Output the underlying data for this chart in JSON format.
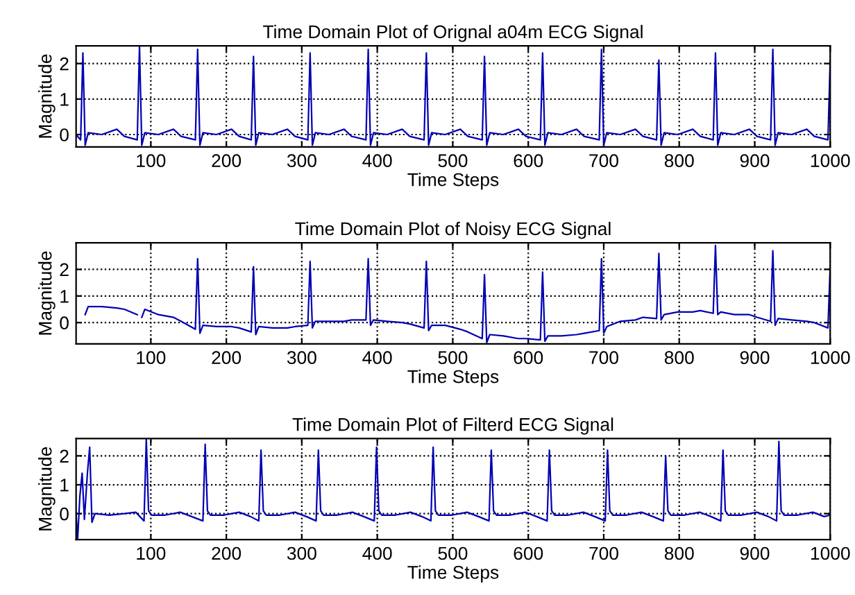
{
  "chart_data": [
    {
      "type": "line",
      "title": "Time Domain Plot of Orignal a04m ECG Signal",
      "xlabel": "Time Steps",
      "ylabel": "Magnitude",
      "xlim": [
        1,
        1000
      ],
      "ylim": [
        -0.35,
        2.5
      ],
      "xticks": [
        100,
        200,
        300,
        400,
        500,
        600,
        700,
        800,
        900,
        1000
      ],
      "yticks": [
        0,
        1,
        2
      ],
      "grid": true,
      "line_style": "solid",
      "series": [
        {
          "color": "#0000b4",
          "x": [
            1,
            7,
            10,
            13,
            17,
            35,
            55,
            65,
            82,
            85,
            88,
            92,
            110,
            130,
            140,
            159,
            162,
            165,
            169,
            187,
            207,
            217,
            233,
            236,
            239,
            243,
            261,
            281,
            291,
            308,
            311,
            314,
            318,
            336,
            356,
            366,
            385,
            388,
            391,
            395,
            413,
            433,
            443,
            462,
            465,
            468,
            472,
            490,
            510,
            520,
            539,
            542,
            545,
            549,
            567,
            587,
            597,
            616,
            619,
            622,
            626,
            644,
            664,
            674,
            694,
            697,
            700,
            704,
            722,
            742,
            752,
            770,
            773,
            776,
            780,
            798,
            818,
            828,
            845,
            848,
            851,
            855,
            873,
            893,
            903,
            921,
            924,
            927,
            931,
            949,
            969,
            979,
            997,
            1000
          ],
          "values": [
            0,
            -0.15,
            2.3,
            -0.3,
            0.05,
            0,
            0.15,
            -0.05,
            -0.15,
            2.5,
            -0.3,
            0.05,
            0,
            0.15,
            -0.05,
            -0.15,
            2.4,
            -0.3,
            0.05,
            0,
            0.15,
            -0.05,
            -0.15,
            2.2,
            -0.3,
            0.05,
            0,
            0.15,
            -0.05,
            -0.15,
            2.3,
            -0.3,
            0.05,
            0,
            0.15,
            -0.05,
            -0.15,
            2.4,
            -0.3,
            0.05,
            0,
            0.15,
            -0.05,
            -0.15,
            2.3,
            -0.3,
            0.05,
            0,
            0.15,
            -0.05,
            -0.15,
            2.2,
            -0.3,
            0.05,
            0,
            0.15,
            -0.05,
            -0.15,
            2.3,
            -0.3,
            0.05,
            0,
            0.15,
            -0.05,
            -0.15,
            2.4,
            -0.3,
            0.05,
            0,
            0.15,
            -0.05,
            -0.15,
            2.1,
            -0.3,
            0.05,
            0,
            0.15,
            -0.05,
            -0.15,
            2.3,
            -0.3,
            0.05,
            0,
            0.15,
            -0.05,
            -0.15,
            2.4,
            -0.3,
            0.05,
            0,
            0.15,
            -0.05,
            -0.15,
            2.1
          ]
        }
      ]
    },
    {
      "type": "line",
      "title": "Time Domain Plot of Noisy ECG Signal",
      "xlabel": "Time Steps",
      "ylabel": "Magnitude",
      "xlim": [
        1,
        1000
      ],
      "ylim": [
        -0.8,
        3
      ],
      "xticks": [
        100,
        200,
        300,
        400,
        500,
        600,
        700,
        800,
        900,
        1000
      ],
      "yticks": [
        0,
        1,
        2
      ],
      "grid": true,
      "line_style": "solid",
      "series": [
        {
          "color": "#0000b4",
          "x": [
            13,
            17,
            35,
            55,
            65,
            82,
            85,
            88,
            92,
            110,
            130,
            140,
            159,
            162,
            165,
            169,
            187,
            207,
            217,
            233,
            236,
            239,
            243,
            261,
            281,
            291,
            308,
            311,
            314,
            318,
            336,
            356,
            366,
            385,
            388,
            391,
            395,
            413,
            433,
            443,
            462,
            465,
            468,
            472,
            490,
            510,
            520,
            539,
            542,
            545,
            549,
            567,
            587,
            597,
            616,
            619,
            622,
            626,
            644,
            664,
            674,
            694,
            697,
            700,
            704,
            722,
            742,
            752,
            770,
            773,
            776,
            780,
            798,
            818,
            828,
            845,
            848,
            851,
            855,
            873,
            893,
            903,
            921,
            924,
            927,
            931,
            949,
            969,
            979,
            997,
            1000
          ],
          "values": [
            0.3,
            0.6,
            0.6,
            0.55,
            0.5,
            0.3,
            null,
            0.2,
            0.5,
            0.3,
            0.2,
            0.05,
            -0.25,
            2.4,
            -0.4,
            -0.1,
            -0.15,
            -0.15,
            -0.2,
            -0.35,
            2.1,
            -0.45,
            -0.15,
            -0.2,
            -0.2,
            -0.15,
            -0.1,
            2.3,
            -0.2,
            0.05,
            0.05,
            0.05,
            0.1,
            0.1,
            2.4,
            -0.1,
            0.1,
            0.05,
            0,
            -0.05,
            -0.2,
            2.3,
            -0.3,
            -0.1,
            -0.1,
            -0.25,
            -0.35,
            -0.6,
            1.8,
            -0.75,
            -0.45,
            -0.5,
            -0.6,
            -0.6,
            -0.65,
            1.9,
            -0.7,
            -0.5,
            -0.5,
            -0.45,
            -0.4,
            -0.3,
            2.4,
            -0.4,
            -0.15,
            0.05,
            0.1,
            0.2,
            0.15,
            2.6,
            0.1,
            0.3,
            0.4,
            0.4,
            0.45,
            0.35,
            2.9,
            0.3,
            0.4,
            0.3,
            0.3,
            0.2,
            0.05,
            2.7,
            -0.1,
            0.15,
            0.1,
            0.05,
            0,
            -0.2,
            2.1
          ]
        }
      ]
    },
    {
      "type": "line",
      "title": "Time Domain Plot of Filterd ECG Signal",
      "xlabel": "Time Steps",
      "ylabel": "Magnitude",
      "xlim": [
        1,
        1000
      ],
      "ylim": [
        -0.9,
        2.6
      ],
      "xticks": [
        100,
        200,
        300,
        400,
        500,
        600,
        700,
        800,
        900,
        1000
      ],
      "yticks": [
        0,
        1,
        2
      ],
      "grid": true,
      "line_style": "solid",
      "series": [
        {
          "color": "#0000b4",
          "x": [
            1,
            3,
            6,
            9,
            12,
            16,
            19,
            22,
            26,
            45,
            65,
            80,
            91,
            94,
            97,
            101,
            119,
            139,
            154,
            169,
            172,
            175,
            179,
            197,
            217,
            232,
            243,
            246,
            249,
            253,
            271,
            291,
            306,
            319,
            322,
            325,
            329,
            347,
            367,
            382,
            396,
            399,
            402,
            406,
            424,
            444,
            459,
            471,
            474,
            477,
            481,
            499,
            519,
            534,
            548,
            551,
            554,
            558,
            576,
            596,
            611,
            625,
            628,
            631,
            635,
            653,
            673,
            688,
            702,
            705,
            708,
            712,
            730,
            750,
            765,
            779,
            782,
            785,
            789,
            807,
            827,
            842,
            855,
            858,
            861,
            865,
            883,
            903,
            918,
            929,
            932,
            935,
            939,
            957,
            977,
            992,
            1000
          ],
          "values": [
            0,
            -0.9,
            0.6,
            1.4,
            -0.2,
            1.4,
            2.3,
            -0.3,
            0,
            -0.05,
            0,
            0.05,
            -0.25,
            2.6,
            0.1,
            -0.05,
            -0.05,
            0.05,
            -0.1,
            -0.25,
            2.4,
            0.1,
            -0.05,
            -0.05,
            0.05,
            -0.1,
            -0.25,
            2.2,
            0.1,
            -0.05,
            -0.05,
            0.05,
            -0.1,
            -0.25,
            2.2,
            0.1,
            -0.05,
            -0.05,
            0.05,
            -0.1,
            -0.25,
            2.3,
            0.1,
            -0.05,
            -0.05,
            0.05,
            -0.1,
            -0.25,
            2.3,
            0.1,
            -0.05,
            -0.05,
            0.05,
            -0.1,
            -0.25,
            2.2,
            0.1,
            -0.05,
            -0.05,
            0.05,
            -0.1,
            -0.25,
            2.2,
            0.1,
            -0.05,
            -0.05,
            0.05,
            -0.1,
            -0.25,
            2.2,
            0.1,
            -0.05,
            -0.05,
            0.05,
            -0.1,
            -0.25,
            2.0,
            0.1,
            -0.05,
            -0.05,
            0.05,
            -0.1,
            -0.25,
            2.2,
            0.1,
            -0.05,
            -0.05,
            0.05,
            -0.1,
            -0.25,
            2.5,
            0.1,
            -0.05,
            -0.05,
            0.05,
            -0.1,
            -0.05
          ]
        }
      ]
    }
  ]
}
